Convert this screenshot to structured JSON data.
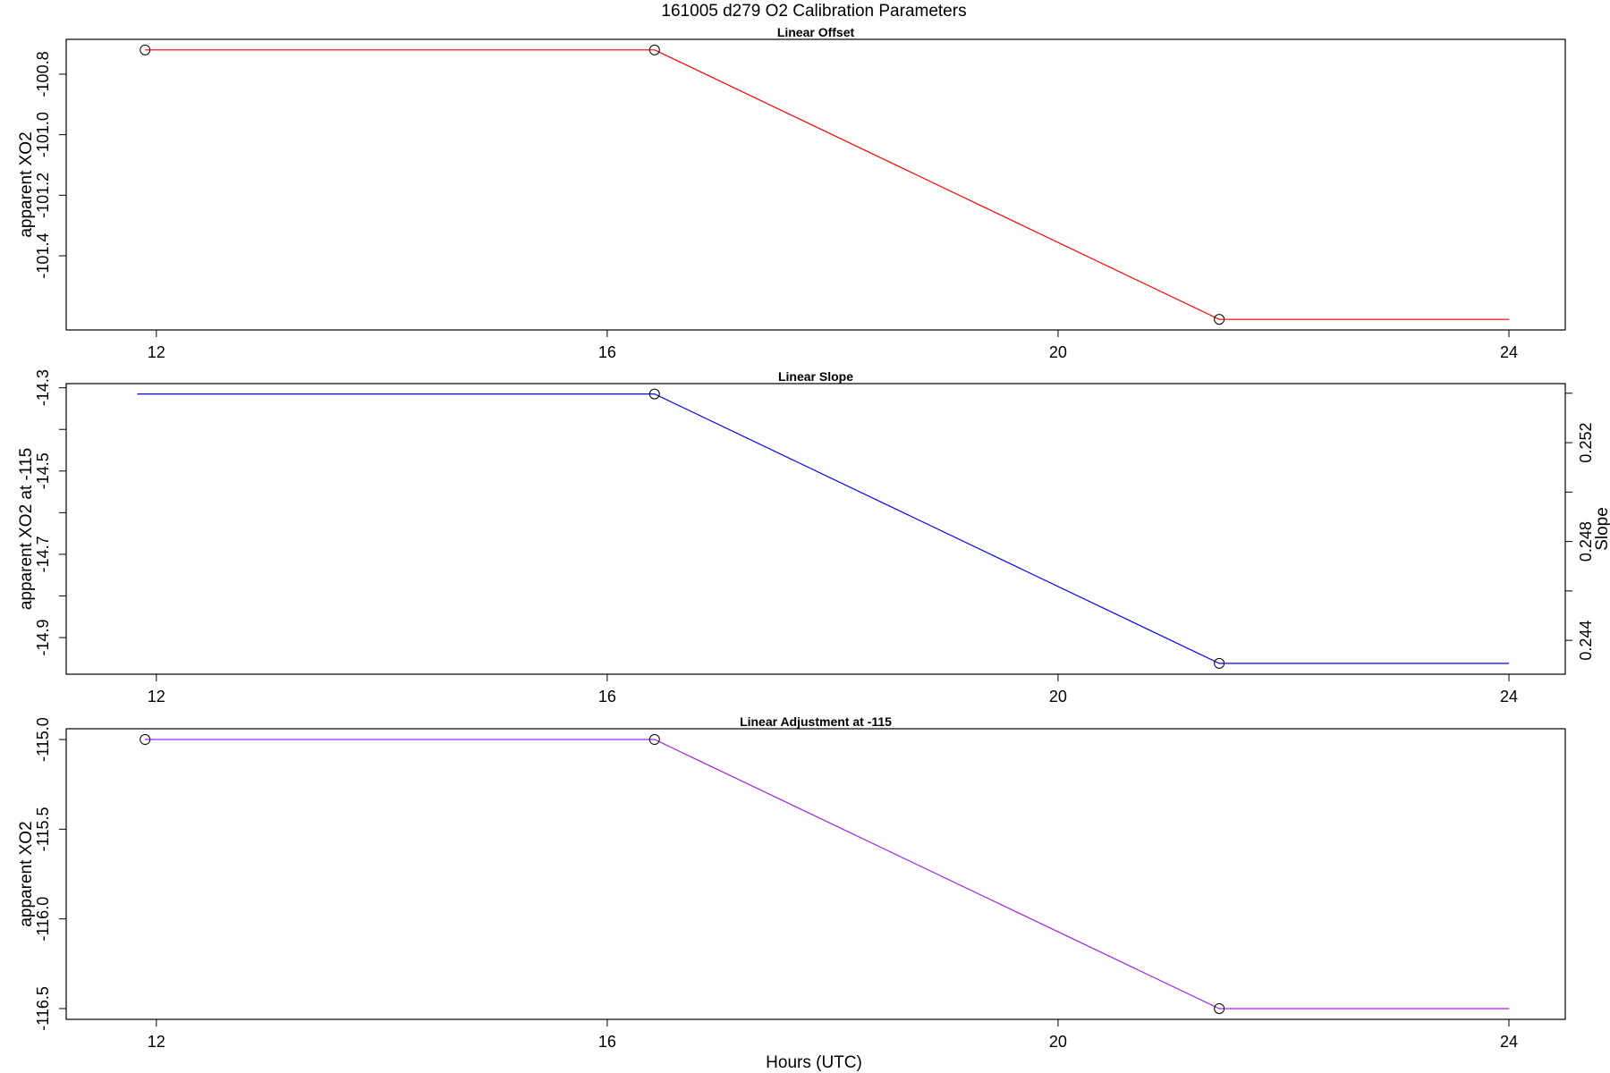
{
  "chart_data": {
    "title": "161005   d279   O2 Calibration Parameters",
    "xlabel": "Hours (UTC)",
    "panels": [
      {
        "type": "line",
        "title": "Linear Offset",
        "ylabel": "apparent XO2",
        "xlim": [
          11.2,
          24.5
        ],
        "ylim": [
          -101.645,
          -100.685
        ],
        "xticks": [
          12,
          16,
          20,
          24
        ],
        "yticks": [
          -100.8,
          -101.0,
          -101.2,
          -101.4
        ],
        "yticklabels": [
          "-100.8",
          "-101.0",
          "-101.2",
          "-101.4"
        ],
        "color": "#ff0000",
        "line": {
          "x": [
            11.9,
            16.42,
            21.43,
            24.0
          ],
          "y": [
            -100.72,
            -100.72,
            -101.61,
            -101.61
          ]
        },
        "points": {
          "x": [
            11.9,
            16.42,
            21.43
          ],
          "y": [
            -100.72,
            -100.72,
            -101.61
          ]
        }
      },
      {
        "type": "line",
        "title": "Linear Slope",
        "ylabel": "apparent XO2 at -115",
        "y2label": "Slope",
        "xlim": [
          11.2,
          24.5
        ],
        "ylim": [
          -14.988,
          -14.29
        ],
        "xticks": [
          12,
          16,
          20,
          24
        ],
        "yticks": [
          -14.3,
          -14.4,
          -14.5,
          -14.6,
          -14.7,
          -14.8,
          -14.9
        ],
        "yticklabels": [
          "-14.3",
          "",
          "-14.5",
          "",
          "-14.7",
          "",
          "-14.9"
        ],
        "y2lim": [
          0.24263,
          0.25439
        ],
        "y2ticks": [
          0.244,
          0.246,
          0.248,
          0.25,
          0.252,
          0.254
        ],
        "y2ticklabels": [
          "0.244",
          "",
          "0.248",
          "",
          "0.252",
          ""
        ],
        "color": "#0000ff",
        "line": {
          "x": [
            11.83,
            16.42,
            21.43,
            24.0
          ],
          "y": [
            -14.315,
            -14.315,
            -14.962,
            -14.962
          ]
        },
        "points": {
          "x": [
            16.42,
            21.43
          ],
          "y": [
            -14.315,
            -14.962
          ]
        }
      },
      {
        "type": "line",
        "title": "Linear Adjustment at -115",
        "ylabel": "apparent XO2",
        "xlim": [
          11.2,
          24.5
        ],
        "ylim": [
          -116.56,
          -114.94
        ],
        "xticks": [
          12,
          16,
          20,
          24
        ],
        "yticks": [
          -115.0,
          -115.5,
          -116.0,
          -116.5
        ],
        "yticklabels": [
          "-115.0",
          "-115.5",
          "-116.0",
          "-116.5"
        ],
        "color": "#a020f0",
        "line": {
          "x": [
            11.9,
            16.42,
            21.43,
            24.0
          ],
          "y": [
            -115.0,
            -115.0,
            -116.5,
            -116.5
          ]
        },
        "points": {
          "x": [
            11.9,
            16.42,
            21.43
          ],
          "y": [
            -115.0,
            -115.0,
            -116.5
          ]
        }
      }
    ]
  }
}
